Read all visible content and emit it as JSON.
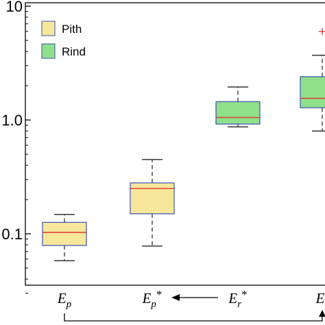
{
  "chart_data": {
    "type": "box",
    "title": "",
    "xlabel": "",
    "ylabel": "",
    "yscale": "log",
    "ylim": [
      0.025,
      10
    ],
    "yticks": [
      {
        "value": 0.1,
        "label": "0.1"
      },
      {
        "value": 1,
        "label": "1.0"
      },
      {
        "value": 10,
        "label": "10"
      }
    ],
    "categories": [
      "E_p",
      "E_p*",
      "E_r*",
      "E_r"
    ],
    "category_labels": [
      {
        "base": "E",
        "sub": "p",
        "star": ""
      },
      {
        "base": "E",
        "sub": "p",
        "star": "*"
      },
      {
        "base": "E",
        "sub": "r",
        "star": "*"
      },
      {
        "base": "E",
        "sub": "r",
        "star": ""
      }
    ],
    "legend": {
      "position": "top-left",
      "entries": [
        {
          "label": "Pith",
          "color": "#f7e79a"
        },
        {
          "label": "Rind",
          "color": "#8fe08a"
        }
      ]
    },
    "series": [
      {
        "name": "Pith",
        "color": "#f7e79a",
        "boxes": [
          {
            "category": "E_p",
            "whisker_low": 0.058,
            "q1": 0.079,
            "median": 0.103,
            "q3": 0.126,
            "whisker_high": 0.148,
            "outliers": []
          },
          {
            "category": "E_p*",
            "whisker_low": 0.078,
            "q1": 0.15,
            "median": 0.25,
            "q3": 0.28,
            "whisker_high": 0.45,
            "outliers": []
          }
        ]
      },
      {
        "name": "Rind",
        "color": "#8fe08a",
        "boxes": [
          {
            "category": "E_r*",
            "whisker_low": 0.87,
            "q1": 0.92,
            "median": 1.05,
            "q3": 1.45,
            "whisker_high": 1.95,
            "outliers": []
          },
          {
            "category": "E_r",
            "whisker_low": 0.8,
            "q1": 1.28,
            "median": 1.55,
            "q3": 2.4,
            "whisker_high": 3.7,
            "outliers": [
              6.0
            ]
          }
        ]
      }
    ],
    "colors": {
      "box_edge": "#3a4fb0",
      "median": "#e0342c",
      "outlier": "#d93a3a",
      "whisker": "#333333"
    },
    "annotations": [
      {
        "type": "arrow",
        "from": "E_r*",
        "to": "E_p*"
      },
      {
        "type": "bracket-arrow",
        "from": "E_p",
        "to": "E_r"
      }
    ],
    "grid": false
  }
}
